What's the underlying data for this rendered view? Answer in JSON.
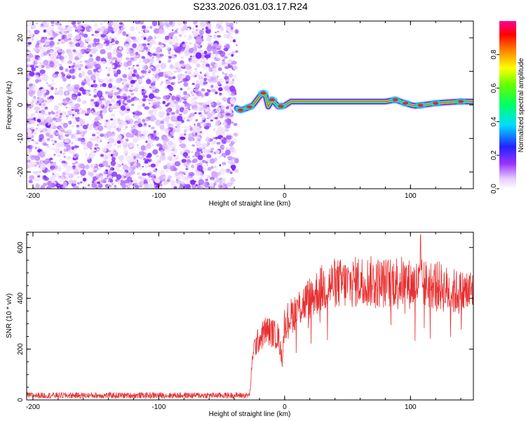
{
  "figure": {
    "title": "S233.2026.031.03.17.R24"
  },
  "chart_data": [
    {
      "type": "heatmap",
      "title": "",
      "xlabel": "Height of straight line (km)",
      "ylabel": "Frequency (Hz)",
      "xlim": [
        -205,
        150
      ],
      "ylim": [
        -25,
        25
      ],
      "xticks": [
        -200,
        -100,
        0,
        100
      ],
      "yticks": [
        20,
        10,
        0,
        -10,
        -20
      ],
      "colorbar": {
        "label": "Normalized spectral amplitude",
        "range": [
          0,
          1
        ],
        "ticks": [
          0.0,
          0.2,
          0.4,
          0.6,
          0.8
        ]
      },
      "noise_region_xrange": [
        -205,
        -38
      ],
      "signal_trace": {
        "x": [
          -38,
          -35,
          -30,
          -25,
          -20,
          -17,
          -15,
          -13,
          -10,
          -5,
          0,
          5,
          20,
          40,
          60,
          80,
          88,
          92,
          96,
          100,
          104,
          110,
          120,
          130,
          140,
          150
        ],
        "freq": [
          -1.0,
          -1.5,
          -1.0,
          0.0,
          2.5,
          3.5,
          2.5,
          -0.5,
          1.5,
          -0.5,
          -0.2,
          1.0,
          1.0,
          1.0,
          1.0,
          1.0,
          1.5,
          1.0,
          0.5,
          0.0,
          -0.3,
          0.0,
          0.5,
          0.8,
          1.0,
          1.0
        ]
      }
    },
    {
      "type": "line",
      "title": "",
      "xlabel": "Height of straight line (km)",
      "ylabel": "SNR (10 * v/v)",
      "xlim": [
        -205,
        150
      ],
      "ylim": [
        0,
        660
      ],
      "xticks": [
        -200,
        -100,
        0,
        100
      ],
      "yticks": [
        0,
        200,
        400,
        600
      ],
      "series": [
        {
          "name": "SNR",
          "color": "#e83030",
          "envelope_x": [
            -205,
            -28,
            -27,
            -25,
            -20,
            -15,
            -10,
            -5,
            -2,
            0,
            5,
            10,
            20,
            30,
            40,
            50,
            60,
            70,
            80,
            90,
            100,
            110,
            120,
            130,
            140,
            150
          ],
          "envelope_y": [
            18,
            18,
            60,
            200,
            240,
            275,
            265,
            250,
            160,
            305,
            330,
            360,
            400,
            440,
            460,
            455,
            470,
            465,
            460,
            470,
            455,
            455,
            455,
            430,
            420,
            430
          ],
          "noise_amplitude": 12,
          "peak_value": 650,
          "peak_x": 108
        }
      ]
    }
  ]
}
